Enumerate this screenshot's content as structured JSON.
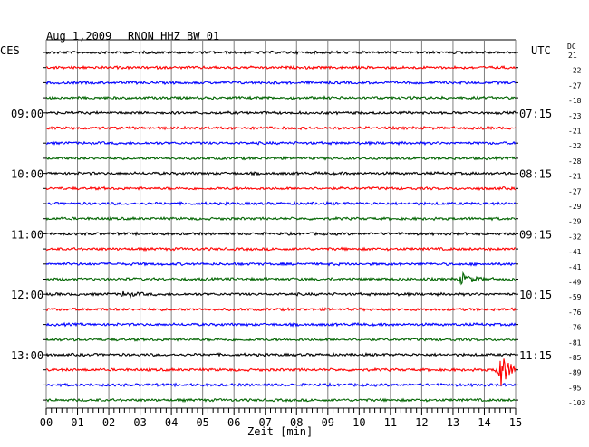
{
  "header": {
    "date": "Aug 1,2009",
    "station": "RNON HHZ BW 01",
    "left_zone": "CES",
    "right_zone": "UTC",
    "dc_label": "DC"
  },
  "chart_data": {
    "type": "line",
    "title": "",
    "xlabel": "Zeit [min]",
    "x_ticks": [
      "00",
      "01",
      "02",
      "03",
      "04",
      "05",
      "06",
      "07",
      "08",
      "09",
      "10",
      "11",
      "12",
      "13",
      "14",
      "15"
    ],
    "xlim": [
      0,
      15
    ],
    "grid": true,
    "trace_colors": [
      "#000000",
      "#ff0000",
      "#0000ff",
      "#006400"
    ],
    "left_hours": [
      {
        "row": 4,
        "label": "09:00"
      },
      {
        "row": 8,
        "label": "10:00"
      },
      {
        "row": 12,
        "label": "11:00"
      },
      {
        "row": 16,
        "label": "12:00"
      },
      {
        "row": 20,
        "label": "13:00"
      }
    ],
    "right_hours": [
      {
        "row": 4,
        "label": "07:15"
      },
      {
        "row": 8,
        "label": "08:15"
      },
      {
        "row": 12,
        "label": "09:15"
      },
      {
        "row": 16,
        "label": "10:15"
      },
      {
        "row": 20,
        "label": "11:15"
      }
    ],
    "dc_offsets": [
      "21",
      "-22",
      "-27",
      "-18",
      "-23",
      "-21",
      "-22",
      "-28",
      "-21",
      "-27",
      "-29",
      "-29",
      "-32",
      "-41",
      "-41",
      "-49",
      "-59",
      "-76",
      "-76",
      "-81",
      "-85",
      "-89",
      "-95",
      "-103"
    ],
    "events": [
      {
        "row": 15,
        "minute": 13.3,
        "amplitude": 6
      },
      {
        "row": 21,
        "minute": 14.5,
        "amplitude": 20
      },
      {
        "row": 16,
        "minute": 2.5,
        "amplitude": 3
      }
    ]
  }
}
